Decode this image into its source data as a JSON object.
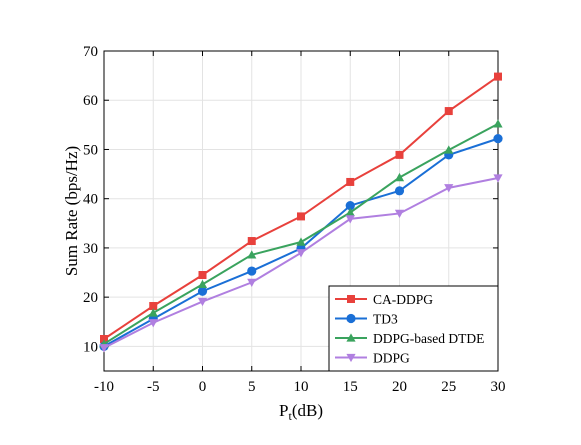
{
  "chart_data": {
    "type": "line",
    "x": [
      -10,
      -5,
      0,
      5,
      10,
      15,
      20,
      25,
      30
    ],
    "x_tick_labels": [
      "-10",
      "-5",
      "0",
      "5",
      "10",
      "15",
      "20",
      "25",
      "30"
    ],
    "y_ticks": [
      10,
      20,
      30,
      40,
      50,
      60,
      70
    ],
    "y_tick_labels": [
      "10",
      "20",
      "30",
      "40",
      "50",
      "60",
      "70"
    ],
    "xlim": [
      -10,
      30
    ],
    "ylim": [
      5,
      70
    ],
    "xlabel_main": "P",
    "xlabel_sub": "t",
    "xlabel_unit": "(dB)",
    "ylabel": "Sum Rate (bps/Hz)",
    "grid": true,
    "legend_position": "bottom-right",
    "series": [
      {
        "name": "CA-DDPG",
        "color": "#e8413c",
        "marker": "square",
        "values": [
          11.5,
          18.2,
          24.5,
          31.4,
          36.4,
          43.4,
          48.9,
          57.8,
          64.8
        ]
      },
      {
        "name": "TD3",
        "color": "#1a6fd6",
        "marker": "circle",
        "values": [
          10.0,
          15.6,
          21.2,
          25.3,
          29.9,
          38.6,
          41.6,
          48.9,
          52.2
        ]
      },
      {
        "name": "DDPG-based DTDE",
        "color": "#3aa35e",
        "marker": "triangle-up",
        "values": [
          10.5,
          16.8,
          22.6,
          28.6,
          31.2,
          37.2,
          44.3,
          49.9,
          55.2
        ]
      },
      {
        "name": "DDPG",
        "color": "#b07fe0",
        "marker": "triangle-down",
        "values": [
          9.7,
          14.8,
          19.1,
          23.0,
          29.0,
          35.9,
          37.0,
          42.2,
          44.2
        ]
      }
    ]
  }
}
